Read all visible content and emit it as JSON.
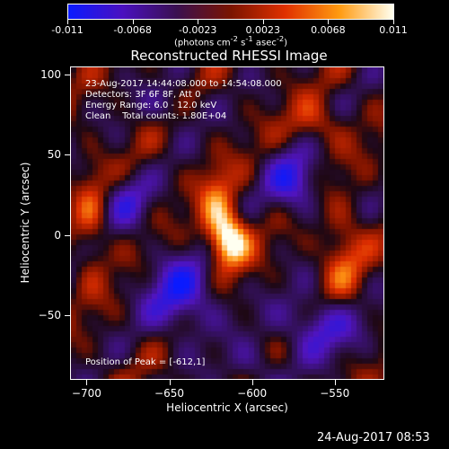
{
  "colorbar": {
    "ticks": [
      "-0.011",
      "-0.0068",
      "-0.0023",
      "0.0023",
      "0.0068",
      "0.011"
    ],
    "units_prefix": "(photons cm",
    "units_exp1": "-2",
    "units_mid1": " s",
    "units_exp2": "-1",
    "units_mid2": " asec",
    "units_exp3": "-2",
    "units_suffix": ")",
    "colors": [
      "#0a1aff",
      "#4a10c0",
      "#3a1050",
      "#7a1400",
      "#e03000",
      "#ff9a10",
      "#fffff0"
    ]
  },
  "title": "Reconstructed RHESSI Image",
  "info": {
    "time": "23-Aug-2017 14:44:08.000 to 14:54:08.000",
    "detectors": "Detectors: 3F 6F 8F, Att 0",
    "energy": "Energy Range: 6.0 - 12.0 keV",
    "clean": "Clean    Total counts: 1.80E+04"
  },
  "peak": "Position of Peak = [-612,1]",
  "axes": {
    "xlabel": "Heliocentric X (arcsec)",
    "ylabel": "Heliocentric Y (arcsec)",
    "xticks": [
      "-700",
      "-650",
      "-600",
      "-550"
    ],
    "yticks": [
      "100",
      "50",
      "0",
      "-50"
    ],
    "xrange": [
      -710,
      -520
    ],
    "yrange": [
      -90,
      105
    ]
  },
  "timestamp": "24-Aug-2017 08:53"
}
